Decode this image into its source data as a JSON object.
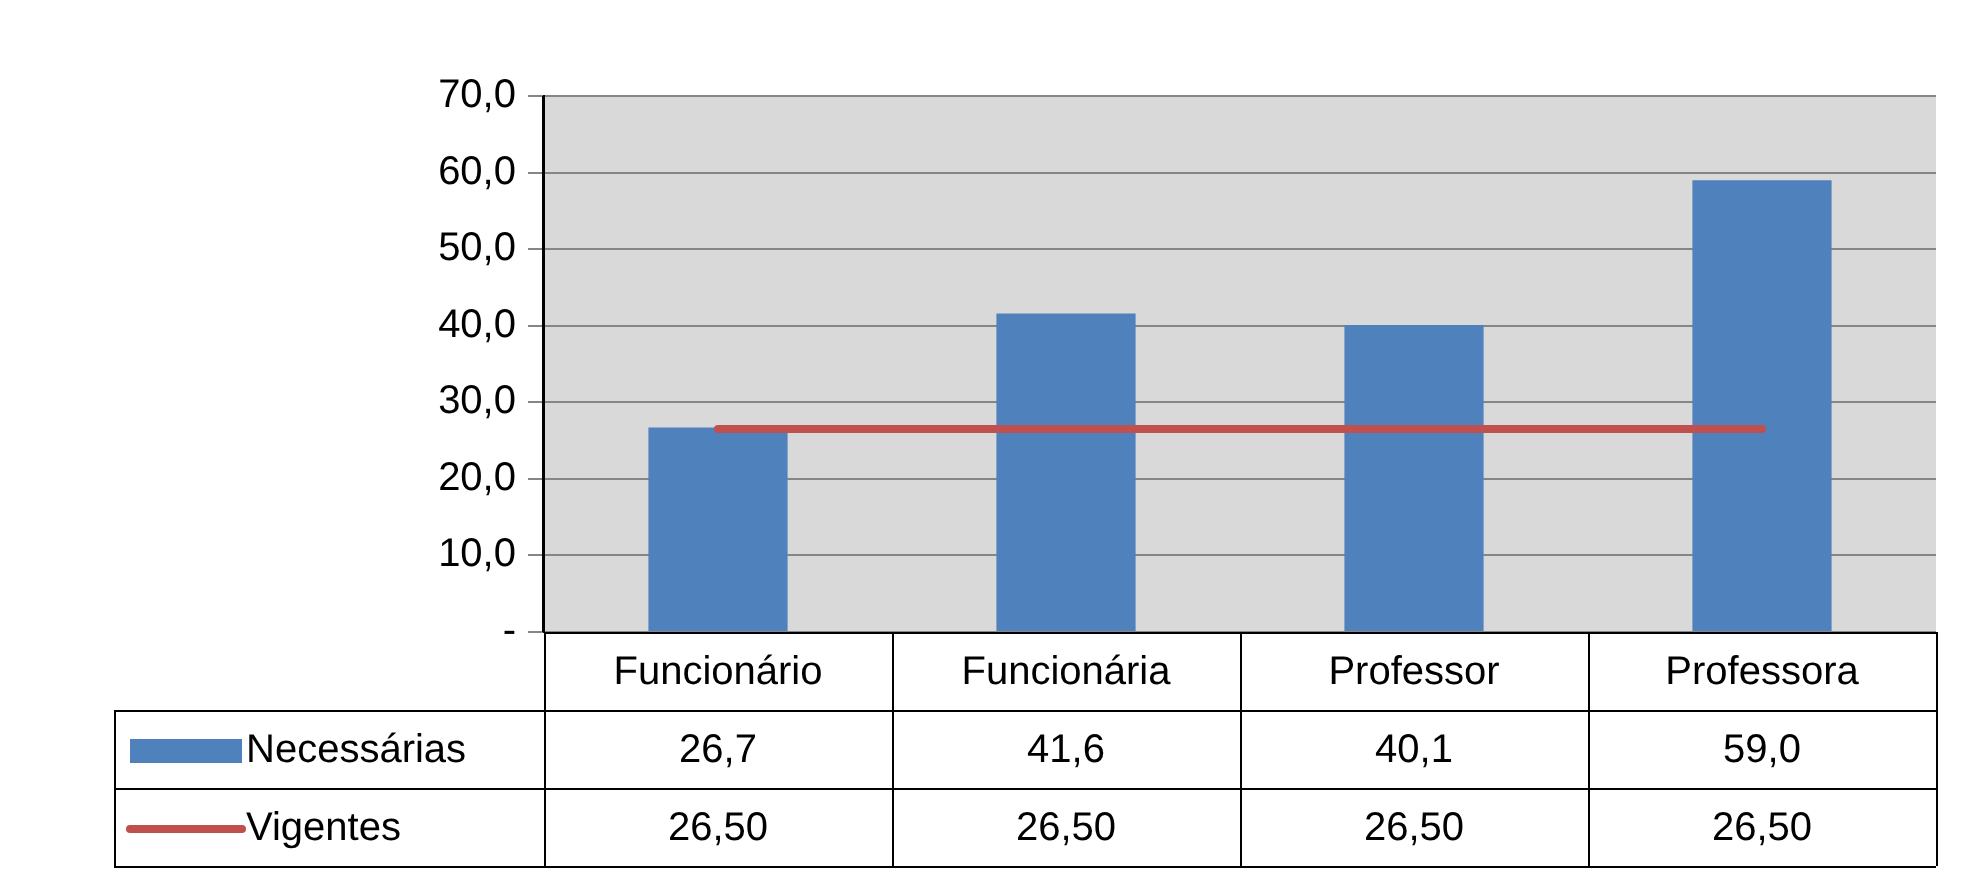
{
  "chart_data": {
    "type": "bar",
    "categories": [
      "Funcionário",
      "Funcionária",
      "Professor",
      "Professora"
    ],
    "series": [
      {
        "name": "Necessárias",
        "color": "#4f81bd",
        "values": [
          26.7,
          41.6,
          40.1,
          59.0
        ],
        "value_labels": [
          "26,7",
          "41,6",
          "40,1",
          "59,0"
        ]
      },
      {
        "name": "Vigentes",
        "type": "line",
        "color": "#c0504d",
        "values": [
          26.5,
          26.5,
          26.5,
          26.5
        ],
        "value_labels": [
          "26,50",
          "26,50",
          "26,50",
          "26,50"
        ]
      }
    ],
    "ylim": [
      0,
      70
    ],
    "yticks": [
      {
        "value": 0,
        "label": "-"
      },
      {
        "value": 10,
        "label": "10,0"
      },
      {
        "value": 20,
        "label": "20,0"
      },
      {
        "value": 30,
        "label": "30,0"
      },
      {
        "value": 40,
        "label": "40,0"
      },
      {
        "value": 50,
        "label": "50,0"
      },
      {
        "value": 60,
        "label": "60,0"
      },
      {
        "value": 70,
        "label": "70,0"
      }
    ],
    "grid": "y",
    "legend": "bottom left",
    "marker": "none",
    "line_style": "solid"
  }
}
